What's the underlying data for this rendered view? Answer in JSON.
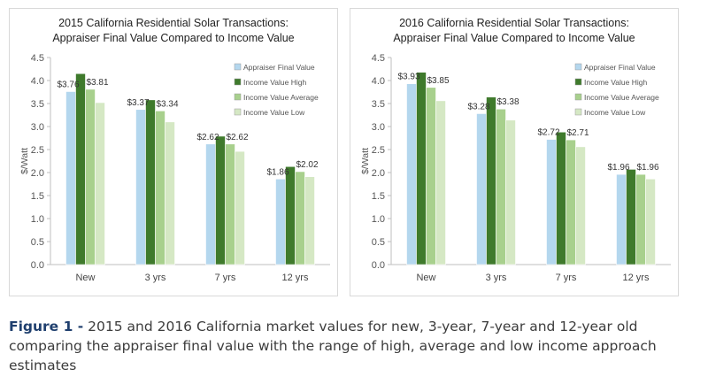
{
  "chart_data": [
    {
      "type": "bar",
      "title": "2015 California Residential Solar Transactions:",
      "subtitle": "Appraiser Final Value Compared to Income Value",
      "ylabel": "$/Watt",
      "xlabel": "",
      "ylim": [
        0,
        4.5
      ],
      "yticks": [
        "0.0",
        "0.5",
        "1.0",
        "1.5",
        "2.0",
        "2.5",
        "3.0",
        "3.5",
        "4.0",
        "4.5"
      ],
      "grid": false,
      "legend_position": "top-right",
      "categories": [
        "New",
        "3 yrs",
        "7 yrs",
        "12 yrs"
      ],
      "series": [
        {
          "name": "Appraiser Final Value",
          "color": "#b4d7ee",
          "values": [
            3.76,
            3.37,
            2.62,
            1.86
          ]
        },
        {
          "name": "Income Value High",
          "color": "#3f7a2c",
          "values": [
            4.15,
            3.58,
            2.79,
            2.13
          ]
        },
        {
          "name": "Income Value Average",
          "color": "#a8d08d",
          "values": [
            3.81,
            3.34,
            2.62,
            2.02
          ]
        },
        {
          "name": "Income Value Low",
          "color": "#d5e8c4",
          "values": [
            3.52,
            3.1,
            2.46,
            1.91
          ]
        }
      ],
      "data_labels": {
        "Appraiser Final Value": [
          "$3.76",
          "$3.37",
          "$2.62",
          "$1.86"
        ],
        "Income Value Average": [
          "$3.81",
          "$3.34",
          "$2.62",
          "$2.02"
        ]
      }
    },
    {
      "type": "bar",
      "title": "2016 California Residential Solar Transactions:",
      "subtitle": "Appraiser Final Value Compared to Income Value",
      "ylabel": "$/Watt",
      "xlabel": "",
      "ylim": [
        0,
        4.5
      ],
      "yticks": [
        "0.0",
        "0.5",
        "1.0",
        "1.5",
        "2.0",
        "2.5",
        "3.0",
        "3.5",
        "4.0",
        "4.5"
      ],
      "grid": false,
      "legend_position": "top-right",
      "categories": [
        "New",
        "3 yrs",
        "7 yrs",
        "12 yrs"
      ],
      "series": [
        {
          "name": "Appraiser Final Value",
          "color": "#b4d7ee",
          "values": [
            3.93,
            3.28,
            2.72,
            1.96
          ]
        },
        {
          "name": "Income Value High",
          "color": "#3f7a2c",
          "values": [
            4.18,
            3.64,
            2.88,
            2.07
          ]
        },
        {
          "name": "Income Value Average",
          "color": "#a8d08d",
          "values": [
            3.85,
            3.38,
            2.71,
            1.96
          ]
        },
        {
          "name": "Income Value Low",
          "color": "#d5e8c4",
          "values": [
            3.56,
            3.14,
            2.56,
            1.86
          ]
        }
      ],
      "data_labels": {
        "Appraiser Final Value": [
          "$3.93",
          "$3.28",
          "$2.72",
          "$1.96"
        ],
        "Income Value Average": [
          "$3.85",
          "$3.38",
          "$2.71",
          "$1.96"
        ]
      }
    }
  ],
  "caption": {
    "lead": "Figure 1 -",
    "text": " 2015 and 2016 California market values for new, 3-year, 7-year and 12-year old comparing the appraiser final value with the range of high, average and low income approach estimates"
  }
}
